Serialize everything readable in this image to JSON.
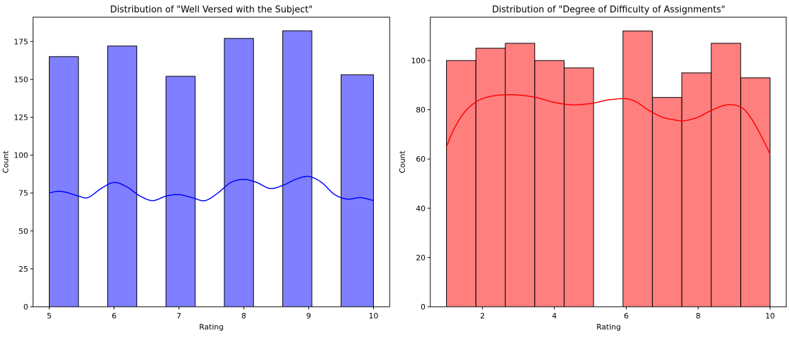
{
  "chart_data": [
    {
      "type": "histogram",
      "title": "Distribution of \"Well Versed with the Subject\"",
      "xlabel": "Rating",
      "ylabel": "Count",
      "xlim": [
        4.75,
        10.25
      ],
      "ylim": [
        0,
        191
      ],
      "xticks": [
        5,
        6,
        7,
        8,
        9,
        10
      ],
      "yticks": [
        0,
        25,
        50,
        75,
        100,
        125,
        150,
        175
      ],
      "bar_color": "#0000ff",
      "bar_alpha": 0.5,
      "edge_color": "#000000",
      "kde_color": "#0000ff",
      "bins": [
        {
          "x0": 5.0,
          "x1": 5.45,
          "count": 165
        },
        {
          "x0": 5.45,
          "x1": 5.9,
          "count": 0
        },
        {
          "x0": 5.9,
          "x1": 6.35,
          "count": 172
        },
        {
          "x0": 6.35,
          "x1": 6.8,
          "count": 0
        },
        {
          "x0": 6.8,
          "x1": 7.25,
          "count": 152
        },
        {
          "x0": 7.25,
          "x1": 7.7,
          "count": 0
        },
        {
          "x0": 7.7,
          "x1": 8.15,
          "count": 177
        },
        {
          "x0": 8.15,
          "x1": 8.6,
          "count": 0
        },
        {
          "x0": 8.6,
          "x1": 9.05,
          "count": 182
        },
        {
          "x0": 9.05,
          "x1": 9.5,
          "count": 0
        },
        {
          "x0": 9.5,
          "x1": 10.0,
          "count": 153
        }
      ],
      "kde": {
        "x": [
          5.0,
          5.1,
          5.2,
          5.3,
          5.45,
          5.6,
          5.8,
          6.0,
          6.2,
          6.4,
          6.6,
          6.8,
          7.0,
          7.2,
          7.4,
          7.6,
          7.8,
          8.0,
          8.2,
          8.4,
          8.6,
          8.8,
          9.0,
          9.2,
          9.4,
          9.6,
          9.8,
          10.0
        ],
        "y": [
          75,
          76,
          76,
          75,
          73,
          72,
          78,
          82,
          79,
          73,
          70,
          73,
          74,
          72,
          70,
          75,
          82,
          84,
          82,
          78,
          80,
          84,
          86,
          82,
          74,
          71,
          72,
          70
        ]
      }
    },
    {
      "type": "histogram",
      "title": "Distribution of \"Degree of Difficulty of Assignments\"",
      "xlabel": "Rating",
      "ylabel": "Count",
      "xlim": [
        0.55,
        10.45
      ],
      "ylim": [
        0,
        117.6
      ],
      "xticks": [
        2,
        4,
        6,
        8,
        10
      ],
      "yticks": [
        0,
        20,
        40,
        60,
        80,
        100
      ],
      "bar_color": "#ff0000",
      "bar_alpha": 0.5,
      "edge_color": "#000000",
      "kde_color": "#ff0000",
      "bins": [
        {
          "x0": 1.0,
          "x1": 1.818,
          "count": 100
        },
        {
          "x0": 1.818,
          "x1": 2.636,
          "count": 105
        },
        {
          "x0": 2.636,
          "x1": 3.455,
          "count": 107
        },
        {
          "x0": 3.455,
          "x1": 4.273,
          "count": 100
        },
        {
          "x0": 4.273,
          "x1": 5.091,
          "count": 97
        },
        {
          "x0": 5.091,
          "x1": 5.909,
          "count": 0
        },
        {
          "x0": 5.909,
          "x1": 6.727,
          "count": 112
        },
        {
          "x0": 6.727,
          "x1": 7.545,
          "count": 85
        },
        {
          "x0": 7.545,
          "x1": 8.364,
          "count": 95
        },
        {
          "x0": 8.364,
          "x1": 9.182,
          "count": 107
        },
        {
          "x0": 9.182,
          "x1": 10.0,
          "count": 93
        }
      ],
      "kde": {
        "x": [
          1.0,
          1.2,
          1.5,
          1.8,
          2.1,
          2.5,
          3.0,
          3.5,
          4.0,
          4.5,
          5.0,
          5.5,
          6.0,
          6.3,
          6.6,
          7.0,
          7.3,
          7.6,
          8.0,
          8.4,
          8.8,
          9.2,
          9.5,
          9.8,
          10.0
        ],
        "y": [
          65,
          72,
          79,
          83,
          85,
          86,
          86,
          85,
          83,
          82,
          82.5,
          84,
          84.5,
          83,
          80,
          77,
          76,
          75.5,
          77,
          80,
          82,
          81,
          76,
          68,
          62
        ]
      }
    }
  ]
}
